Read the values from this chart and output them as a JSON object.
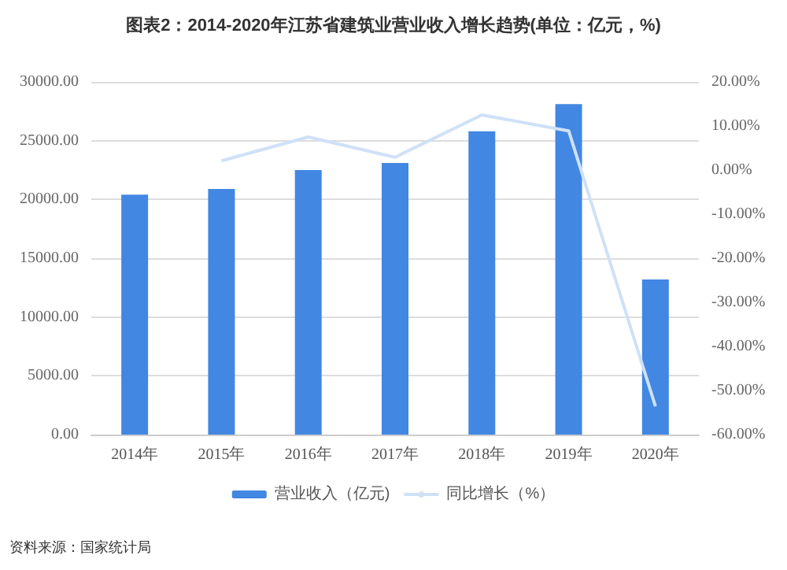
{
  "chart_data": {
    "type": "bar",
    "title": "图表2：2014-2020年江苏省建筑业营业收入增长趋势(单位：亿元，%)",
    "categories": [
      "2014年",
      "2015年",
      "2016年",
      "2017年",
      "2018年",
      "2019年",
      "2020年"
    ],
    "series": [
      {
        "name": "营业收入（亿元)",
        "color": "#4287e2",
        "values": [
          20400,
          20900,
          22500,
          23100,
          25800,
          28100,
          13200
        ]
      },
      {
        "name": "同比增长（%）",
        "type": "line",
        "axis": "y2",
        "color": "#cfe1f7",
        "values": [
          null,
          2.1,
          7.5,
          2.9,
          12.5,
          8.9,
          -53.6
        ]
      }
    ],
    "ylim": [
      0,
      30000
    ],
    "yticks": [
      {
        "value": 0,
        "label": "0.00"
      },
      {
        "value": 5000,
        "label": "5000.00"
      },
      {
        "value": 10000,
        "label": "10000.00"
      },
      {
        "value": 15000,
        "label": "15000.00"
      },
      {
        "value": 20000,
        "label": "20000.00"
      },
      {
        "value": 25000,
        "label": "25000.00"
      },
      {
        "value": 30000,
        "label": "30000.00"
      }
    ],
    "y2lim": [
      -60,
      20
    ],
    "y2ticks": [
      {
        "value": -60,
        "label": "-60.00%"
      },
      {
        "value": -50,
        "label": "-50.00%"
      },
      {
        "value": -40,
        "label": "-40.00%"
      },
      {
        "value": -30,
        "label": "-30.00%"
      },
      {
        "value": -20,
        "label": "-20.00%"
      },
      {
        "value": -10,
        "label": "-10.00%"
      },
      {
        "value": 0,
        "label": "0.00%"
      },
      {
        "value": 10,
        "label": "10.00%"
      },
      {
        "value": 20,
        "label": "20.00%"
      }
    ],
    "grid": "y",
    "legend": "bottom",
    "marker": "none",
    "annotations": [
      "资料来源：国家统计局"
    ]
  }
}
